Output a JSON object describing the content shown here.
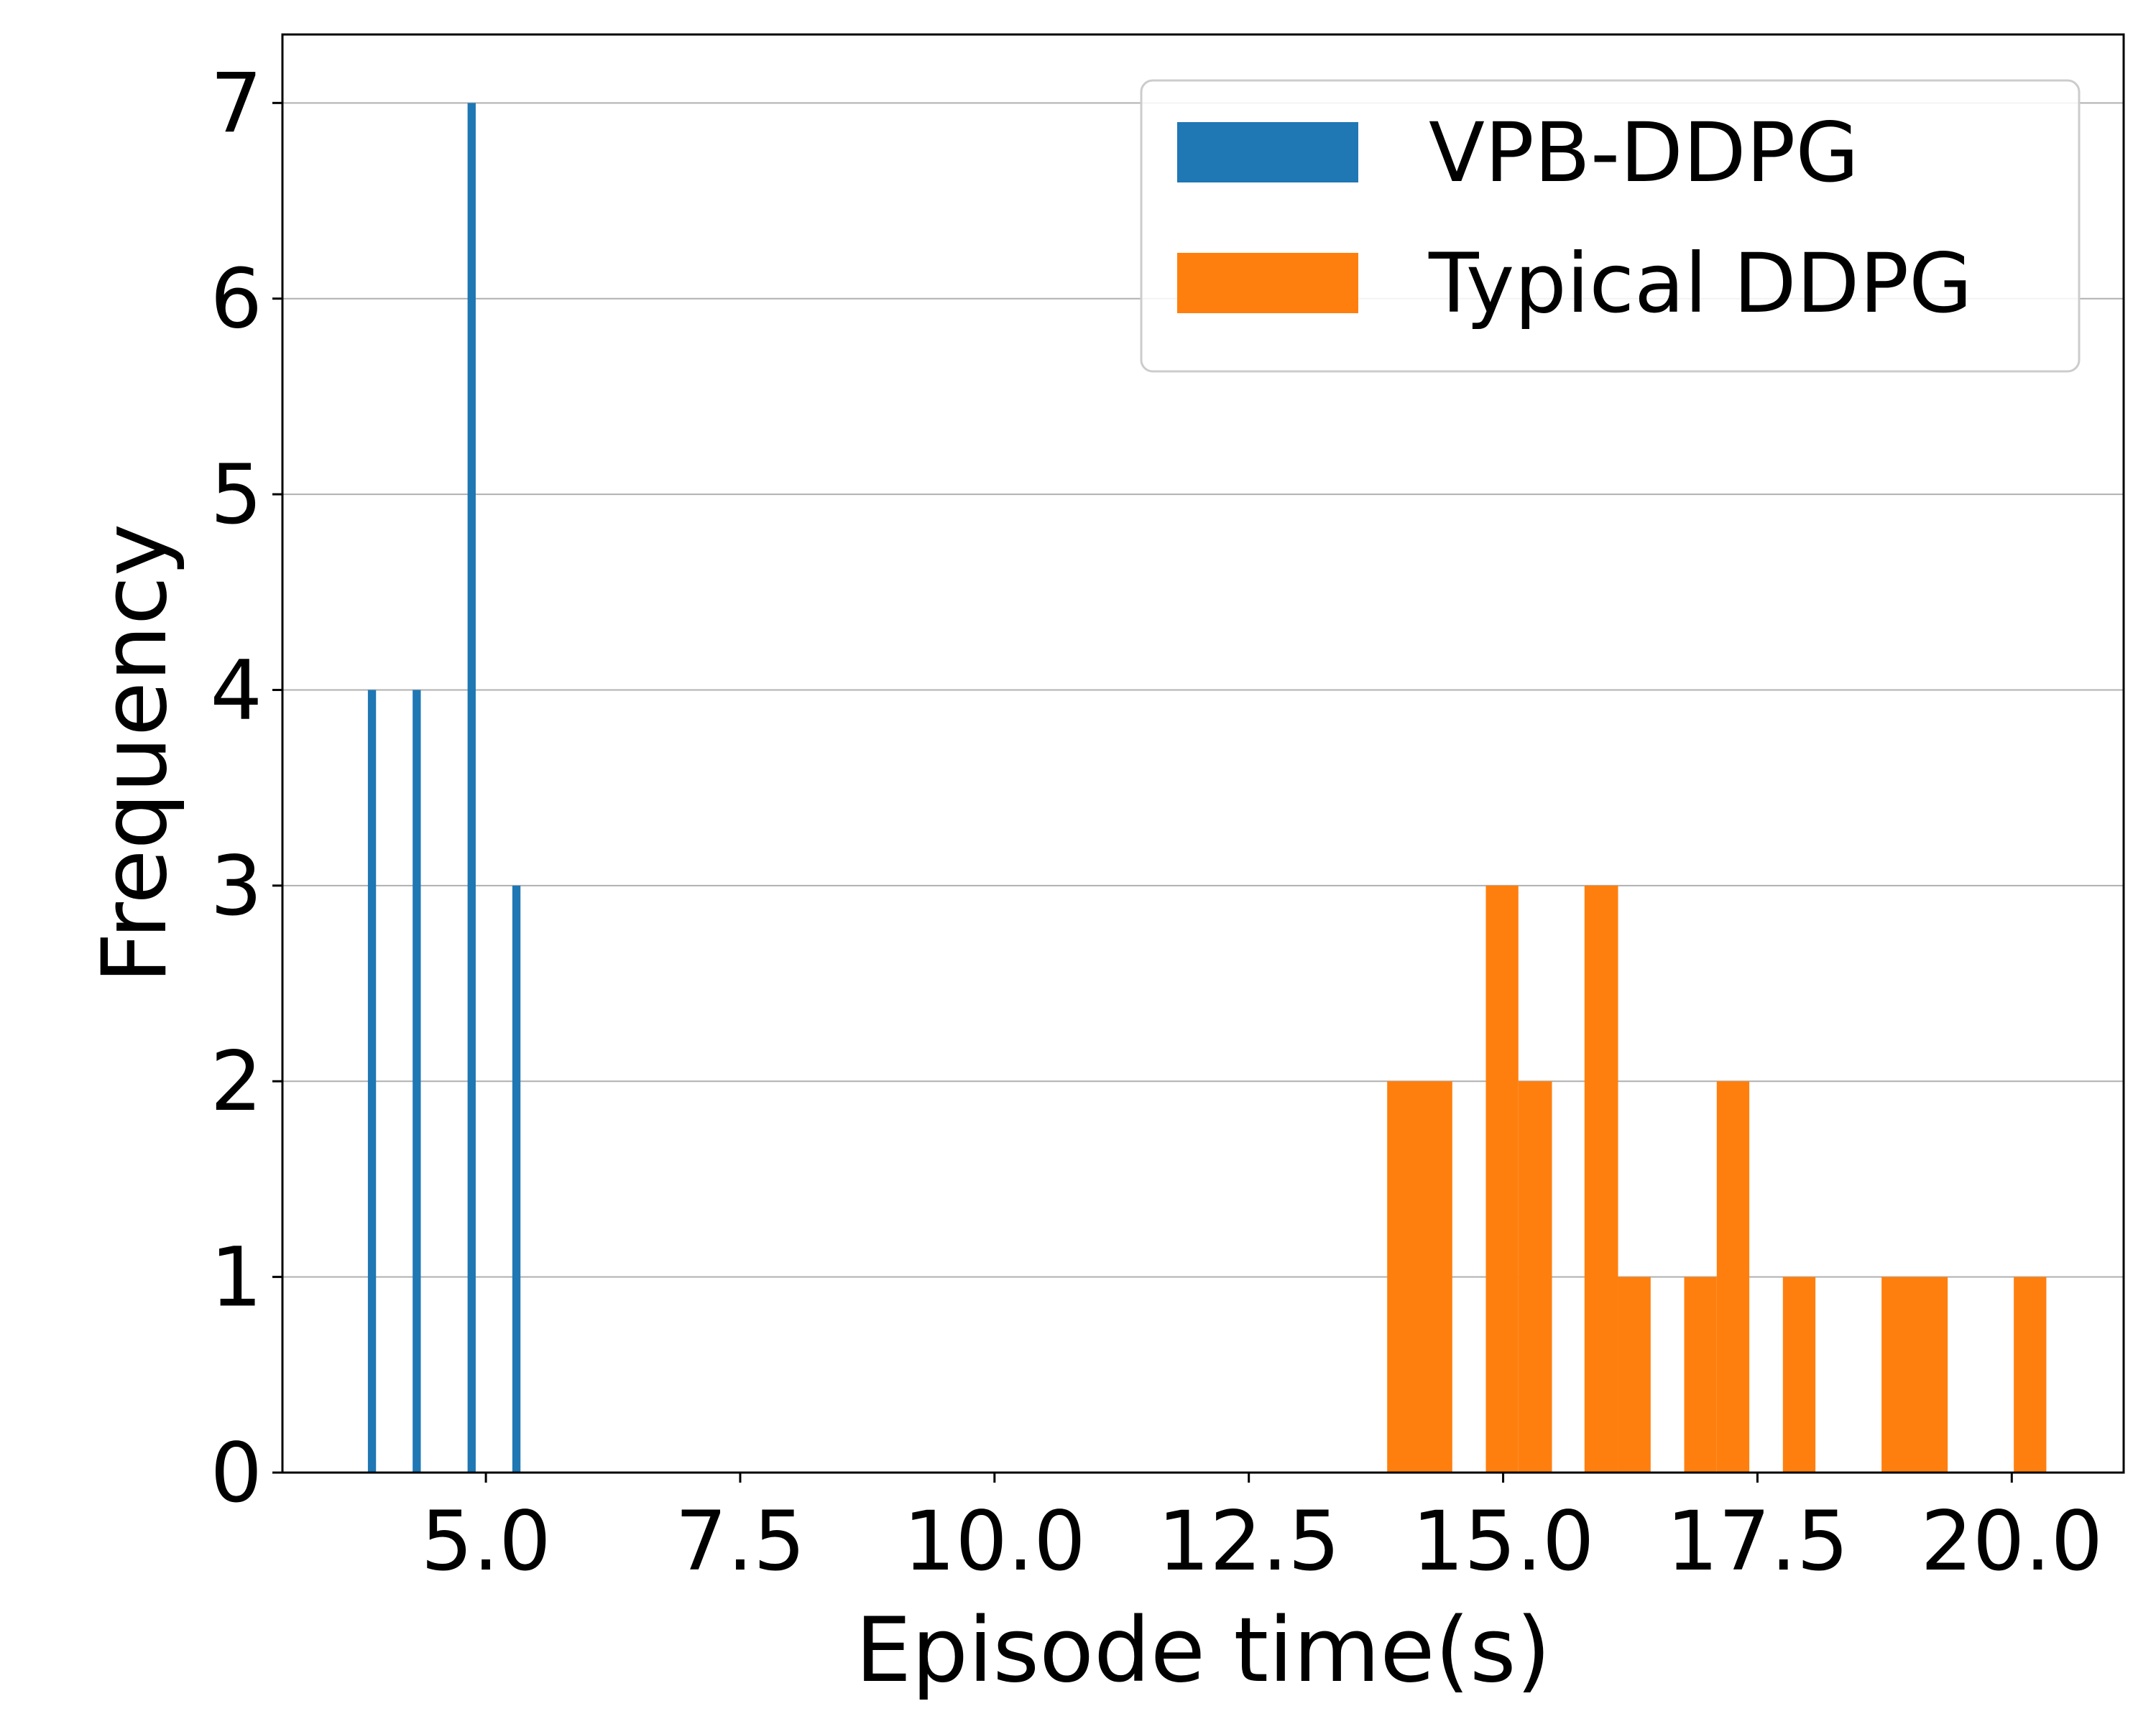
{
  "chart_data": {
    "type": "bar",
    "title": "",
    "xlabel": "Episode time(s)",
    "ylabel": "Frequency",
    "xlim": [
      3.0,
      21.1
    ],
    "ylim": [
      0,
      7.35
    ],
    "xticks": [
      "5.0",
      "7.5",
      "10.0",
      "12.5",
      "15.0",
      "17.5",
      "20.0"
    ],
    "yticks": [
      "0",
      "1",
      "2",
      "3",
      "4",
      "5",
      "6",
      "7"
    ],
    "grid": "horizontal",
    "legend_position": "top-right",
    "series": [
      {
        "name": "VPB-DDPG",
        "color": "#1f77b4",
        "bins": [
          {
            "x0": 3.84,
            "x1": 3.92,
            "value": 4
          },
          {
            "x0": 4.28,
            "x1": 4.36,
            "value": 4
          },
          {
            "x0": 4.82,
            "x1": 4.9,
            "value": 7
          },
          {
            "x0": 5.26,
            "x1": 5.34,
            "value": 3
          }
        ]
      },
      {
        "name": "Typical DDPG",
        "color": "#ff7f0e",
        "bins": [
          {
            "x0": 13.86,
            "x1": 14.5,
            "value": 2
          },
          {
            "x0": 14.83,
            "x1": 15.15,
            "value": 3
          },
          {
            "x0": 15.15,
            "x1": 15.48,
            "value": 2
          },
          {
            "x0": 15.8,
            "x1": 16.13,
            "value": 3
          },
          {
            "x0": 16.13,
            "x1": 16.45,
            "value": 1
          },
          {
            "x0": 16.78,
            "x1": 17.1,
            "value": 1
          },
          {
            "x0": 17.1,
            "x1": 17.42,
            "value": 2
          },
          {
            "x0": 17.75,
            "x1": 18.07,
            "value": 1
          },
          {
            "x0": 18.72,
            "x1": 19.37,
            "value": 1
          },
          {
            "x0": 20.02,
            "x1": 20.34,
            "value": 1
          }
        ]
      }
    ]
  }
}
